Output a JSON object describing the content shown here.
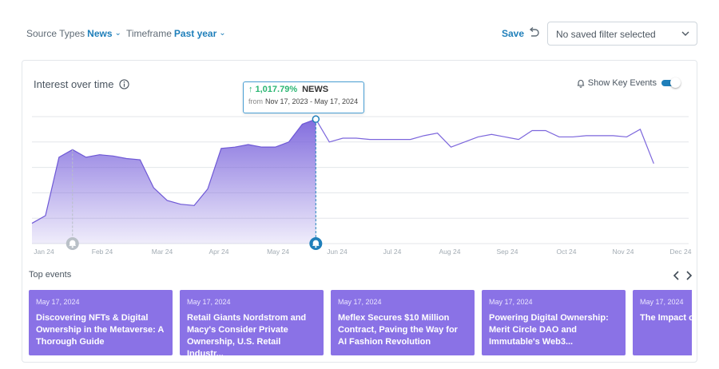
{
  "filters": {
    "source_types_label": "Source Types",
    "source_types_value": "News",
    "timeframe_label": "Timeframe",
    "timeframe_value": "Past year",
    "save_label": "Save",
    "saved_filter_placeholder": "No saved filter selected"
  },
  "card": {
    "title": "Interest over time",
    "show_key_events_label": "Show Key Events",
    "show_key_events_on": true
  },
  "tooltip": {
    "percent": "1,017.79%",
    "source": "NEWS",
    "from_label": "from",
    "range": "Nov 17, 2023 - May 17, 2024"
  },
  "colors": {
    "accent": "#1f7fba",
    "series": "#7c66dc",
    "card_bg": "#8a72e6",
    "positive": "#2bb673"
  },
  "chart_data": {
    "type": "area",
    "x_tick_labels": [
      "Jan 24",
      "Feb 24",
      "Mar 24",
      "Apr 24",
      "May 24",
      "Jun 24",
      "Jul 24",
      "Aug 24",
      "Sep 24",
      "Oct 24",
      "Nov 24",
      "Dec 24"
    ],
    "ylim": [
      0,
      100
    ],
    "grid": true,
    "y_tick_labels_visible": false,
    "series": [
      {
        "values": [
          16,
          22,
          68,
          74,
          68,
          70,
          69,
          67,
          66,
          44,
          34,
          31,
          30,
          43,
          75,
          76,
          78,
          76,
          76,
          80,
          94,
          98,
          80,
          83,
          83,
          82,
          82,
          82,
          82,
          85,
          87,
          76,
          80,
          84,
          86,
          84,
          82,
          89,
          89,
          84,
          84,
          85,
          85,
          85,
          84,
          90,
          63
        ]
      }
    ],
    "highlight_index": 21,
    "key_events": [
      {
        "label": "bell-event",
        "index": 3
      },
      {
        "label": "bell-event",
        "index": 21
      }
    ]
  },
  "top_events": {
    "title": "Top events",
    "items": [
      {
        "date": "May 17, 2024",
        "headline": "Discovering NFTs & Digital Ownership in the Metaverse: A Thorough Guide"
      },
      {
        "date": "May 17, 2024",
        "headline": "Retail Giants Nordstrom and Macy's Consider Private Ownership, U.S. Retail Industr..."
      },
      {
        "date": "May 17, 2024",
        "headline": "Meflex Secures $10 Million Contract, Paving the Way for AI Fashion Revolution"
      },
      {
        "date": "May 17, 2024",
        "headline": "Powering Digital Ownership: Merit Circle DAO and Immutable's Web3..."
      },
      {
        "date": "May 17, 2024",
        "headline": "The Impact o on Social Me"
      }
    ]
  }
}
